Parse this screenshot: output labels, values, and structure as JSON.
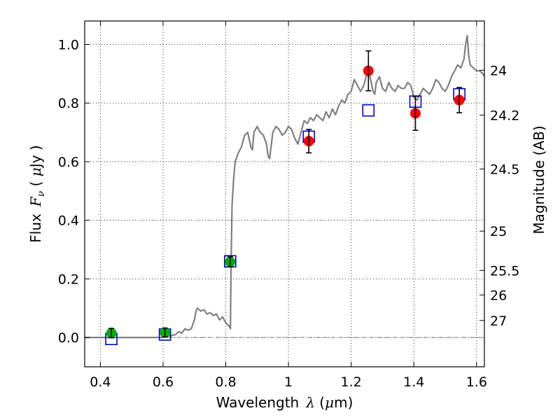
{
  "chart_data": {
    "type": "scatter",
    "xlabel": {
      "prefix": "Wavelength",
      "symbol": "λ",
      "open": " (",
      "unit_mu": "μ",
      "unit": "m)"
    },
    "ylabel": {
      "prefix": "Flux",
      "symbol": "F",
      "sub": "ν",
      "open": " ( ",
      "unit_mu": "μ",
      "unit": "Jy )"
    },
    "y2label": "Magnitude (AB)",
    "xlim": [
      0.35,
      1.625
    ],
    "ylim": [
      -0.1,
      1.08
    ],
    "grid": true,
    "x_ticks": [
      {
        "v": 0.4,
        "t": "0.4"
      },
      {
        "v": 0.6,
        "t": "0.6"
      },
      {
        "v": 0.8,
        "t": "0.8"
      },
      {
        "v": 1.0,
        "t": "1"
      },
      {
        "v": 1.2,
        "t": "1.2"
      },
      {
        "v": 1.4,
        "t": "1.4"
      },
      {
        "v": 1.6,
        "t": "1.6"
      }
    ],
    "y_ticks": [
      {
        "v": 0.0,
        "t": "0.0"
      },
      {
        "v": 0.2,
        "t": "0.2"
      },
      {
        "v": 0.4,
        "t": "0.4"
      },
      {
        "v": 0.6,
        "t": "0.6"
      },
      {
        "v": 0.8,
        "t": "0.8"
      },
      {
        "v": 1.0,
        "t": "1.0"
      }
    ],
    "y2_ticks": [
      {
        "v": 0.912,
        "t": "24"
      },
      {
        "v": 0.759,
        "t": "24.2"
      },
      {
        "v": 0.575,
        "t": "24.5"
      },
      {
        "v": 0.363,
        "t": "25"
      },
      {
        "v": 0.229,
        "t": "25.5"
      },
      {
        "v": 0.145,
        "t": "26"
      },
      {
        "v": 0.058,
        "t": "27"
      }
    ],
    "zero_line": 0.0,
    "colors": {
      "model": "#808080",
      "green": "#00b000",
      "red": "#ff0000",
      "box": "#0000cc",
      "err": "#000000"
    },
    "model_spectrum": [
      [
        0.35,
        0.0
      ],
      [
        0.6,
        0.0
      ],
      [
        0.62,
        0.005
      ],
      [
        0.64,
        0.01
      ],
      [
        0.65,
        0.02
      ],
      [
        0.66,
        0.015
      ],
      [
        0.67,
        0.03
      ],
      [
        0.68,
        0.025
      ],
      [
        0.69,
        0.03
      ],
      [
        0.7,
        0.06
      ],
      [
        0.705,
        0.09
      ],
      [
        0.71,
        0.1
      ],
      [
        0.72,
        0.09
      ],
      [
        0.73,
        0.095
      ],
      [
        0.74,
        0.08
      ],
      [
        0.75,
        0.085
      ],
      [
        0.76,
        0.075
      ],
      [
        0.77,
        0.08
      ],
      [
        0.78,
        0.06
      ],
      [
        0.79,
        0.07
      ],
      [
        0.8,
        0.05
      ],
      [
        0.81,
        0.04
      ],
      [
        0.815,
        0.03
      ],
      [
        0.817,
        0.25
      ],
      [
        0.82,
        0.45
      ],
      [
        0.825,
        0.54
      ],
      [
        0.83,
        0.6
      ],
      [
        0.84,
        0.63
      ],
      [
        0.85,
        0.65
      ],
      [
        0.86,
        0.69
      ],
      [
        0.87,
        0.7
      ],
      [
        0.88,
        0.65
      ],
      [
        0.885,
        0.64
      ],
      [
        0.89,
        0.7
      ],
      [
        0.9,
        0.72
      ],
      [
        0.91,
        0.7
      ],
      [
        0.92,
        0.69
      ],
      [
        0.93,
        0.66
      ],
      [
        0.935,
        0.62
      ],
      [
        0.94,
        0.61
      ],
      [
        0.95,
        0.7
      ],
      [
        0.96,
        0.72
      ],
      [
        0.97,
        0.71
      ],
      [
        0.98,
        0.69
      ],
      [
        0.99,
        0.7
      ],
      [
        1.0,
        0.72
      ],
      [
        1.01,
        0.71
      ],
      [
        1.02,
        0.68
      ],
      [
        1.03,
        0.66
      ],
      [
        1.04,
        0.7
      ],
      [
        1.05,
        0.74
      ],
      [
        1.06,
        0.73
      ],
      [
        1.07,
        0.75
      ],
      [
        1.08,
        0.74
      ],
      [
        1.09,
        0.76
      ],
      [
        1.1,
        0.75
      ],
      [
        1.11,
        0.74
      ],
      [
        1.12,
        0.77
      ],
      [
        1.13,
        0.75
      ],
      [
        1.14,
        0.78
      ],
      [
        1.15,
        0.76
      ],
      [
        1.16,
        0.79
      ],
      [
        1.17,
        0.81
      ],
      [
        1.18,
        0.8
      ],
      [
        1.19,
        0.83
      ],
      [
        1.2,
        0.84
      ],
      [
        1.21,
        0.88
      ],
      [
        1.22,
        0.86
      ],
      [
        1.23,
        0.84
      ],
      [
        1.24,
        0.86
      ],
      [
        1.25,
        0.9
      ],
      [
        1.26,
        0.89
      ],
      [
        1.27,
        0.84
      ],
      [
        1.275,
        0.83
      ],
      [
        1.28,
        0.87
      ],
      [
        1.29,
        0.89
      ],
      [
        1.3,
        0.85
      ],
      [
        1.31,
        0.84
      ],
      [
        1.32,
        0.87
      ],
      [
        1.33,
        0.85
      ],
      [
        1.34,
        0.84
      ],
      [
        1.35,
        0.86
      ],
      [
        1.36,
        0.85
      ],
      [
        1.37,
        0.85
      ],
      [
        1.38,
        0.87
      ],
      [
        1.39,
        0.86
      ],
      [
        1.4,
        0.82
      ],
      [
        1.41,
        0.81
      ],
      [
        1.42,
        0.83
      ],
      [
        1.43,
        0.85
      ],
      [
        1.44,
        0.84
      ],
      [
        1.45,
        0.83
      ],
      [
        1.46,
        0.85
      ],
      [
        1.47,
        0.88
      ],
      [
        1.48,
        0.87
      ],
      [
        1.49,
        0.85
      ],
      [
        1.5,
        0.84
      ],
      [
        1.51,
        0.86
      ],
      [
        1.52,
        0.89
      ],
      [
        1.53,
        0.91
      ],
      [
        1.54,
        0.93
      ],
      [
        1.55,
        0.92
      ],
      [
        1.56,
        0.95
      ],
      [
        1.565,
        1.0
      ],
      [
        1.57,
        1.03
      ],
      [
        1.575,
        0.96
      ],
      [
        1.58,
        0.93
      ],
      [
        1.59,
        0.92
      ],
      [
        1.6,
        0.91
      ],
      [
        1.61,
        0.91
      ],
      [
        1.62,
        0.9
      ],
      [
        1.625,
        0.89
      ]
    ],
    "model_photometry": [
      {
        "x": 0.435,
        "y": -0.005
      },
      {
        "x": 0.606,
        "y": 0.01
      },
      {
        "x": 0.814,
        "y": 0.26
      },
      {
        "x": 1.065,
        "y": 0.685
      },
      {
        "x": 1.255,
        "y": 0.775
      },
      {
        "x": 1.405,
        "y": 0.805
      },
      {
        "x": 1.545,
        "y": 0.83
      }
    ],
    "observed_optical": [
      {
        "x": 0.435,
        "y": 0.015,
        "err": 0.016
      },
      {
        "x": 0.606,
        "y": 0.017,
        "err": 0.015
      },
      {
        "x": 0.814,
        "y": 0.258,
        "err": 0.017
      }
    ],
    "observed_nir": [
      {
        "x": 1.065,
        "y": 0.67,
        "err": 0.04
      },
      {
        "x": 1.255,
        "y": 0.91,
        "err": 0.068
      },
      {
        "x": 1.405,
        "y": 0.765,
        "err": 0.058
      },
      {
        "x": 1.545,
        "y": 0.81,
        "err": 0.043
      }
    ]
  }
}
